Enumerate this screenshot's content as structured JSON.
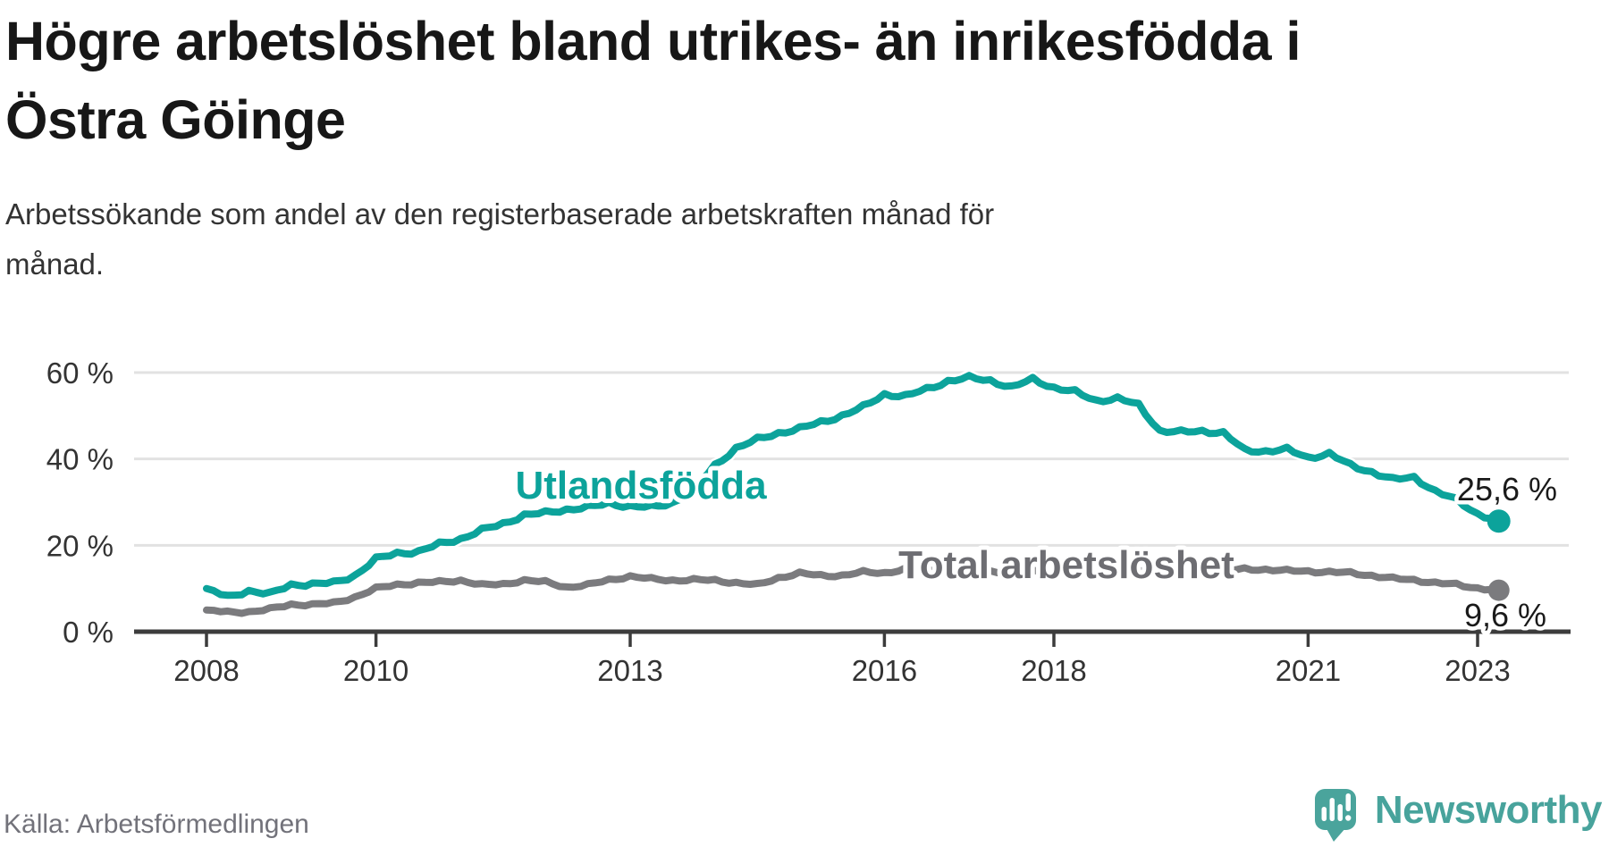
{
  "page": {
    "title_line1": "Högre arbetslöshet bland utrikes- än inrikesfödda i",
    "title_line2": "Östra Göinge",
    "subtitle_line1": "Arbetssökande som andel av den registerbaserade arbetskraften månad för",
    "subtitle_line2": "månad.",
    "source": "Källa: Arbetsförmedlingen",
    "brand": "Newsworthy"
  },
  "colors": {
    "foreign_born_line": "#0ca39b",
    "total_line": "#7b7b7e",
    "total_label": "#6d6d72",
    "value_label": "#1a1a1a",
    "axis": "#3c3c3c",
    "gridline": "#e2e2e2",
    "tick_text": "#333333",
    "brand_teal": "#48a39c",
    "background": "#ffffff"
  },
  "chart_data": {
    "type": "line",
    "title": "Högre arbetslöshet bland utrikes- än inrikesfödda i Östra Göinge",
    "subtitle": "Arbetssökande som andel av den registerbaserade arbetskraften månad för månad.",
    "unit": "%",
    "ylim": [
      0,
      62
    ],
    "grid": "horizontal",
    "ytick_values": [
      0,
      20,
      40,
      60
    ],
    "ytick_labels": [
      "0 %",
      "20 %",
      "40 %",
      "60 %"
    ],
    "xtick_years": [
      2008,
      2010,
      2013,
      2016,
      2018,
      2021,
      2023
    ],
    "xtick_labels": [
      "2008",
      "2010",
      "2013",
      "2016",
      "2018",
      "2021",
      "2023"
    ],
    "x": [
      "2008-01",
      "2008-04",
      "2008-07",
      "2008-10",
      "2009-01",
      "2009-04",
      "2009-07",
      "2009-10",
      "2010-01",
      "2010-04",
      "2010-07",
      "2010-10",
      "2011-01",
      "2011-04",
      "2011-07",
      "2011-10",
      "2012-01",
      "2012-04",
      "2012-07",
      "2012-10",
      "2013-01",
      "2013-04",
      "2013-07",
      "2013-10",
      "2014-01",
      "2014-04",
      "2014-07",
      "2014-10",
      "2015-01",
      "2015-04",
      "2015-07",
      "2015-10",
      "2016-01",
      "2016-04",
      "2016-07",
      "2016-10",
      "2017-01",
      "2017-04",
      "2017-07",
      "2017-10",
      "2018-01",
      "2018-04",
      "2018-07",
      "2018-10",
      "2019-01",
      "2019-04",
      "2019-07",
      "2019-10",
      "2020-01",
      "2020-04",
      "2020-07",
      "2020-10",
      "2021-01",
      "2021-04",
      "2021-07",
      "2021-10",
      "2022-01",
      "2022-04",
      "2022-07",
      "2022-10",
      "2023-01",
      "2023-04"
    ],
    "series": [
      {
        "name": "Utlandsfödda",
        "color": "#0ca39b",
        "end_label": "25,6 %",
        "end_value": 25.6,
        "values": [
          10.0,
          8.0,
          9.5,
          8.7,
          10.9,
          11.0,
          11.3,
          13.0,
          16.8,
          18.2,
          18.5,
          20.3,
          21.5,
          23.5,
          25.0,
          27.0,
          27.5,
          28.3,
          28.8,
          29.7,
          29.0,
          28.8,
          29.8,
          33.0,
          38.5,
          42.5,
          44.5,
          46.0,
          47.0,
          48.5,
          50.0,
          52.0,
          55.0,
          54.5,
          56.2,
          58.0,
          58.8,
          58.2,
          56.5,
          58.5,
          56.5,
          55.5,
          53.5,
          54.0,
          52.5,
          46.5,
          46.2,
          46.5,
          46.0,
          42.0,
          41.8,
          42.2,
          40.3,
          41.2,
          38.5,
          37.0,
          35.2,
          35.8,
          32.5,
          30.5,
          27.3,
          25.6
        ]
      },
      {
        "name": "Total arbetslöshet",
        "color": "#7b7b7e",
        "end_label": "9,6 %",
        "end_value": 9.6,
        "values": [
          5.0,
          4.5,
          4.6,
          5.2,
          6.3,
          6.3,
          6.6,
          8.0,
          10.0,
          10.9,
          11.3,
          11.5,
          11.9,
          10.8,
          11.0,
          11.9,
          11.5,
          10.3,
          10.8,
          12.0,
          12.8,
          12.2,
          11.9,
          12.0,
          11.9,
          11.3,
          10.8,
          12.5,
          13.5,
          13.0,
          13.0,
          13.8,
          13.6,
          14.5,
          14.3,
          14.0,
          14.2,
          14.0,
          13.8,
          14.0,
          14.2,
          14.0,
          13.8,
          14.0,
          14.0,
          13.8,
          13.6,
          13.8,
          14.0,
          14.5,
          14.4,
          14.1,
          14.0,
          13.8,
          13.6,
          13.0,
          12.3,
          12.0,
          11.3,
          10.9,
          10.1,
          9.6
        ]
      }
    ],
    "legend_position": "labels-on-chart"
  }
}
